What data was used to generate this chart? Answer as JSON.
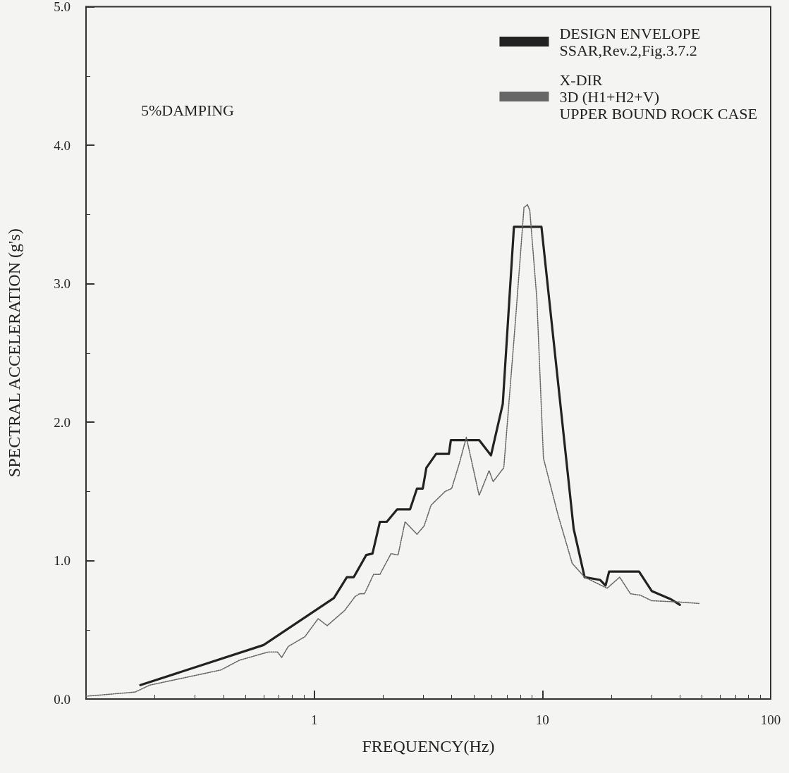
{
  "chart_data": {
    "type": "line",
    "xlabel": "FREQUENCY(Hz)",
    "ylabel": "SPECTRAL ACCELERATION (g's)",
    "annotations": [
      "5%DAMPING"
    ],
    "log": "x",
    "xlim": [
      0.1,
      100
    ],
    "xticks": [
      1,
      10,
      100
    ],
    "ylim": [
      0,
      5
    ],
    "yticks": [
      {
        "value": 0,
        "label": "0.0"
      },
      {
        "value": 1,
        "label": "1.0"
      },
      {
        "value": 2,
        "label": "2.0"
      },
      {
        "value": 3,
        "label": "3.0"
      },
      {
        "value": 4,
        "label": "4.0"
      },
      {
        "value": 5,
        "label": "5.0"
      }
    ],
    "grid": false,
    "legend": "top right",
    "marker": "none",
    "series": [
      {
        "name": "DESIGN ENVELOPE\nSSAR,Rev.2,Fig.3.7.2",
        "color": "#222222",
        "line_style": "solid",
        "x": [
          0.173,
          0.6,
          1.22,
          1.39,
          1.49,
          1.69,
          1.8,
          1.94,
          2.08,
          2.31,
          2.63,
          2.82,
          2.99,
          3.1,
          3.42,
          3.89,
          3.97,
          5.28,
          5.95,
          6.7,
          7.5,
          9.9,
          13.7,
          15.3,
          17.9,
          18.9,
          19.6,
          26.5,
          30.1,
          36.6,
          40
        ],
        "values": [
          0.1,
          0.39,
          0.73,
          0.88,
          0.88,
          1.04,
          1.05,
          1.28,
          1.28,
          1.37,
          1.37,
          1.52,
          1.52,
          1.67,
          1.77,
          1.77,
          1.87,
          1.87,
          1.76,
          2.13,
          3.41,
          3.41,
          1.23,
          0.88,
          0.86,
          0.82,
          0.92,
          0.92,
          0.78,
          0.72,
          0.68
        ]
      },
      {
        "name": "X-DIR\n3D (H1+H2+V)\nUPPER BOUND ROCK CASE",
        "color": "#666666",
        "line_style": "dotted",
        "x": [
          0.1,
          0.164,
          0.19,
          0.39,
          0.47,
          0.63,
          0.69,
          0.72,
          0.77,
          0.91,
          1.04,
          1.14,
          1.36,
          1.51,
          1.58,
          1.66,
          1.82,
          1.94,
          2.17,
          2.33,
          2.5,
          2.82,
          3.03,
          3.25,
          3.75,
          4.0,
          4.32,
          4.64,
          5.28,
          5.84,
          6.08,
          6.77,
          7.63,
          8.3,
          8.6,
          8.8,
          9.45,
          10.1,
          11.7,
          13.5,
          15.3,
          19.2,
          21.8,
          24.3,
          26.8,
          30.1,
          40,
          48.5
        ],
        "values": [
          0.02,
          0.05,
          0.1,
          0.21,
          0.28,
          0.34,
          0.34,
          0.3,
          0.38,
          0.45,
          0.58,
          0.53,
          0.64,
          0.74,
          0.76,
          0.76,
          0.9,
          0.9,
          1.05,
          1.04,
          1.28,
          1.19,
          1.25,
          1.4,
          1.5,
          1.52,
          1.7,
          1.89,
          1.47,
          1.65,
          1.57,
          1.67,
          2.75,
          3.55,
          3.57,
          3.53,
          2.89,
          1.74,
          1.33,
          0.98,
          0.88,
          0.8,
          0.88,
          0.76,
          0.75,
          0.71,
          0.7,
          0.69
        ]
      }
    ]
  }
}
